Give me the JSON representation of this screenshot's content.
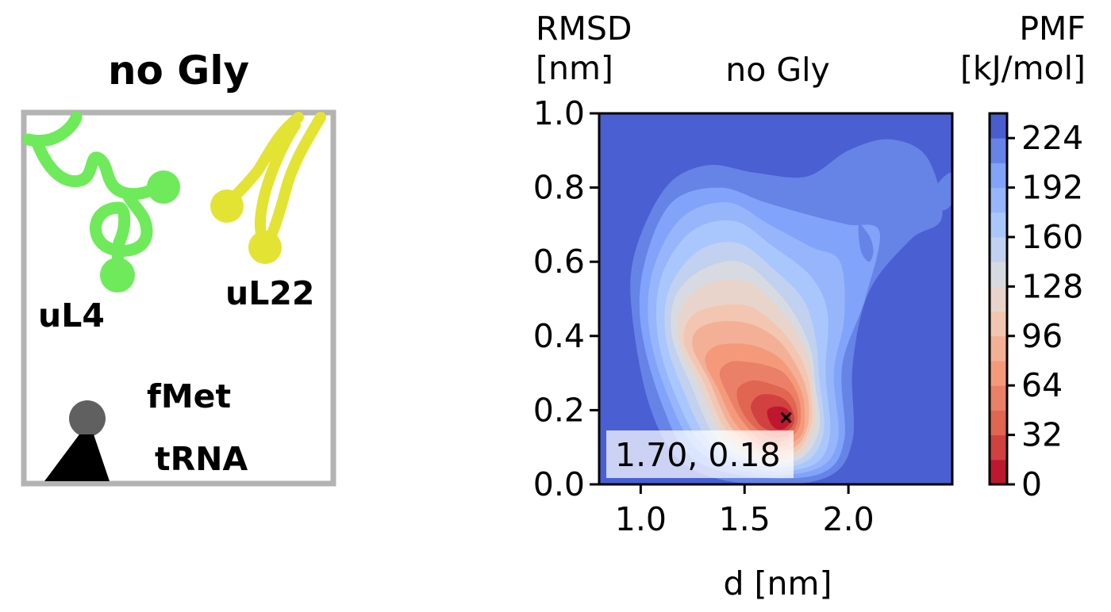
{
  "schematic": {
    "title": "no Gly",
    "labels": {
      "uL4": "uL4",
      "uL22": "uL22",
      "fMet": "fMet",
      "tRNA": "tRNA"
    },
    "colors": {
      "uL4": "#6eea5a",
      "uL22": "#e3e334",
      "fMet": "#606060",
      "tRNA": "#000000",
      "frame": "#b3b3b3"
    }
  },
  "chart_data": {
    "type": "heatmap",
    "title": "no Gly",
    "xlabel": "d [nm]",
    "ylabel_line1": "RMSD",
    "ylabel_line2": "[nm]",
    "xlim": [
      0.8,
      2.5
    ],
    "ylim": [
      0.0,
      1.0
    ],
    "xticks": [
      1.0,
      1.5,
      2.0
    ],
    "xtick_labels": [
      "1.0",
      "1.5",
      "2.0"
    ],
    "yticks": [
      0.0,
      0.2,
      0.4,
      0.6,
      0.8,
      1.0
    ],
    "ytick_labels": [
      "0.0",
      "0.2",
      "0.4",
      "0.6",
      "0.8",
      "1.0"
    ],
    "colorbar": {
      "label_line1": "PMF",
      "label_line2": "[kJ/mol]",
      "range": [
        0,
        240
      ],
      "ticks": [
        0,
        32,
        64,
        96,
        128,
        160,
        192,
        224
      ],
      "tick_labels": [
        "0",
        "32",
        "64",
        "96",
        "128",
        "160",
        "192",
        "224"
      ],
      "colormap": "coolwarm_r"
    },
    "minimum": {
      "x": 1.7,
      "y": 0.18,
      "label": "1.70, 0.18"
    },
    "contours": [
      {
        "level": 224,
        "points": [
          [
            1.22,
            0.05
          ],
          [
            1.05,
            0.2
          ],
          [
            0.96,
            0.45
          ],
          [
            0.97,
            0.62
          ],
          [
            1.12,
            0.8
          ],
          [
            1.32,
            0.86
          ],
          [
            1.55,
            0.84
          ],
          [
            1.8,
            0.83
          ],
          [
            2.0,
            0.9
          ],
          [
            2.2,
            0.93
          ],
          [
            2.38,
            0.88
          ],
          [
            2.45,
            0.72
          ],
          [
            2.3,
            0.66
          ],
          [
            2.1,
            0.52
          ],
          [
            2.02,
            0.32
          ],
          [
            2.02,
            0.12
          ],
          [
            1.9,
            0.02
          ],
          [
            1.55,
            0.0
          ]
        ]
      },
      {
        "level": 208,
        "points": [
          [
            1.25,
            0.07
          ],
          [
            1.1,
            0.22
          ],
          [
            1.0,
            0.43
          ],
          [
            1.02,
            0.6
          ],
          [
            1.15,
            0.76
          ],
          [
            1.38,
            0.8
          ],
          [
            1.6,
            0.76
          ],
          [
            1.85,
            0.72
          ],
          [
            2.0,
            0.7
          ],
          [
            2.15,
            0.68
          ],
          [
            2.08,
            0.5
          ],
          [
            1.97,
            0.32
          ],
          [
            1.98,
            0.12
          ],
          [
            1.87,
            0.03
          ],
          [
            1.55,
            0.02
          ]
        ]
      },
      {
        "level": 192,
        "points": [
          [
            1.28,
            0.09
          ],
          [
            1.13,
            0.24
          ],
          [
            1.04,
            0.42
          ],
          [
            1.06,
            0.58
          ],
          [
            1.2,
            0.72
          ],
          [
            1.42,
            0.76
          ],
          [
            1.62,
            0.7
          ],
          [
            1.82,
            0.64
          ],
          [
            1.96,
            0.6
          ],
          [
            1.98,
            0.45
          ],
          [
            1.93,
            0.3
          ],
          [
            1.95,
            0.12
          ],
          [
            1.84,
            0.04
          ],
          [
            1.55,
            0.03
          ]
        ]
      },
      {
        "level": 176,
        "points": [
          [
            1.31,
            0.1
          ],
          [
            1.16,
            0.25
          ],
          [
            1.08,
            0.41
          ],
          [
            1.1,
            0.56
          ],
          [
            1.24,
            0.68
          ],
          [
            1.45,
            0.71
          ],
          [
            1.64,
            0.64
          ],
          [
            1.82,
            0.56
          ],
          [
            1.9,
            0.46
          ],
          [
            1.89,
            0.3
          ],
          [
            1.91,
            0.13
          ],
          [
            1.82,
            0.05
          ],
          [
            1.56,
            0.04
          ]
        ]
      },
      {
        "level": 160,
        "points": [
          [
            1.34,
            0.11
          ],
          [
            1.2,
            0.26
          ],
          [
            1.12,
            0.4
          ],
          [
            1.14,
            0.53
          ],
          [
            1.28,
            0.63
          ],
          [
            1.47,
            0.65
          ],
          [
            1.64,
            0.58
          ],
          [
            1.78,
            0.5
          ],
          [
            1.84,
            0.4
          ],
          [
            1.86,
            0.28
          ],
          [
            1.88,
            0.14
          ],
          [
            1.79,
            0.06
          ],
          [
            1.57,
            0.05
          ]
        ]
      },
      {
        "level": 144,
        "points": [
          [
            1.37,
            0.12
          ],
          [
            1.24,
            0.27
          ],
          [
            1.15,
            0.4
          ],
          [
            1.17,
            0.51
          ],
          [
            1.3,
            0.58
          ],
          [
            1.48,
            0.6
          ],
          [
            1.64,
            0.53
          ],
          [
            1.75,
            0.45
          ],
          [
            1.82,
            0.36
          ],
          [
            1.84,
            0.27
          ],
          [
            1.86,
            0.15
          ],
          [
            1.77,
            0.07
          ],
          [
            1.58,
            0.06
          ]
        ]
      },
      {
        "level": 128,
        "points": [
          [
            1.4,
            0.13
          ],
          [
            1.27,
            0.28
          ],
          [
            1.18,
            0.39
          ],
          [
            1.2,
            0.48
          ],
          [
            1.32,
            0.54
          ],
          [
            1.5,
            0.55
          ],
          [
            1.64,
            0.49
          ],
          [
            1.74,
            0.42
          ],
          [
            1.81,
            0.34
          ],
          [
            1.83,
            0.26
          ],
          [
            1.84,
            0.16
          ],
          [
            1.76,
            0.08
          ],
          [
            1.59,
            0.07
          ]
        ]
      },
      {
        "level": 112,
        "points": [
          [
            1.42,
            0.14
          ],
          [
            1.3,
            0.28
          ],
          [
            1.21,
            0.38
          ],
          [
            1.24,
            0.45
          ],
          [
            1.36,
            0.48
          ],
          [
            1.52,
            0.48
          ],
          [
            1.65,
            0.43
          ],
          [
            1.74,
            0.37
          ],
          [
            1.8,
            0.3
          ],
          [
            1.82,
            0.23
          ],
          [
            1.82,
            0.16
          ],
          [
            1.75,
            0.09
          ],
          [
            1.6,
            0.08
          ]
        ]
      },
      {
        "level": 96,
        "points": [
          [
            1.44,
            0.15
          ],
          [
            1.33,
            0.28
          ],
          [
            1.25,
            0.37
          ],
          [
            1.28,
            0.42
          ],
          [
            1.4,
            0.44
          ],
          [
            1.54,
            0.43
          ],
          [
            1.66,
            0.39
          ],
          [
            1.74,
            0.33
          ],
          [
            1.79,
            0.27
          ],
          [
            1.81,
            0.21
          ],
          [
            1.8,
            0.15
          ],
          [
            1.74,
            0.1
          ],
          [
            1.6,
            0.09
          ]
        ]
      },
      {
        "level": 80,
        "points": [
          [
            1.46,
            0.16
          ],
          [
            1.37,
            0.26
          ],
          [
            1.31,
            0.33
          ],
          [
            1.35,
            0.37
          ],
          [
            1.46,
            0.38
          ],
          [
            1.57,
            0.37
          ],
          [
            1.67,
            0.34
          ],
          [
            1.74,
            0.29
          ],
          [
            1.78,
            0.24
          ],
          [
            1.79,
            0.19
          ],
          [
            1.78,
            0.14
          ],
          [
            1.72,
            0.11
          ],
          [
            1.6,
            0.1
          ]
        ]
      },
      {
        "level": 64,
        "points": [
          [
            1.49,
            0.17
          ],
          [
            1.42,
            0.24
          ],
          [
            1.38,
            0.3
          ],
          [
            1.43,
            0.33
          ],
          [
            1.52,
            0.33
          ],
          [
            1.61,
            0.32
          ],
          [
            1.69,
            0.3
          ],
          [
            1.75,
            0.25
          ],
          [
            1.77,
            0.2
          ],
          [
            1.76,
            0.15
          ],
          [
            1.7,
            0.12
          ],
          [
            1.6,
            0.11
          ]
        ]
      },
      {
        "level": 48,
        "points": [
          [
            1.52,
            0.17
          ],
          [
            1.47,
            0.22
          ],
          [
            1.47,
            0.26
          ],
          [
            1.54,
            0.28
          ],
          [
            1.63,
            0.27
          ],
          [
            1.71,
            0.25
          ],
          [
            1.75,
            0.21
          ],
          [
            1.75,
            0.16
          ],
          [
            1.7,
            0.13
          ],
          [
            1.61,
            0.13
          ]
        ]
      },
      {
        "level": 32,
        "points": [
          [
            1.56,
            0.17
          ],
          [
            1.53,
            0.21
          ],
          [
            1.57,
            0.24
          ],
          [
            1.65,
            0.24
          ],
          [
            1.71,
            0.22
          ],
          [
            1.74,
            0.18
          ],
          [
            1.72,
            0.15
          ],
          [
            1.66,
            0.14
          ],
          [
            1.6,
            0.15
          ]
        ]
      },
      {
        "level": 16,
        "points": [
          [
            1.62,
            0.17
          ],
          [
            1.61,
            0.2
          ],
          [
            1.66,
            0.21
          ],
          [
            1.71,
            0.2
          ],
          [
            1.72,
            0.17
          ],
          [
            1.69,
            0.15
          ],
          [
            1.65,
            0.15
          ]
        ]
      }
    ],
    "islands": [
      {
        "level": 208,
        "points": [
          [
            2.05,
            0.7
          ],
          [
            2.1,
            0.67
          ],
          [
            2.12,
            0.63
          ],
          [
            2.1,
            0.6
          ],
          [
            2.06,
            0.63
          ]
        ]
      },
      {
        "level": 208,
        "points": [
          [
            2.42,
            0.8
          ],
          [
            2.5,
            0.84
          ],
          [
            2.5,
            0.76
          ],
          [
            2.44,
            0.74
          ]
        ]
      }
    ]
  }
}
